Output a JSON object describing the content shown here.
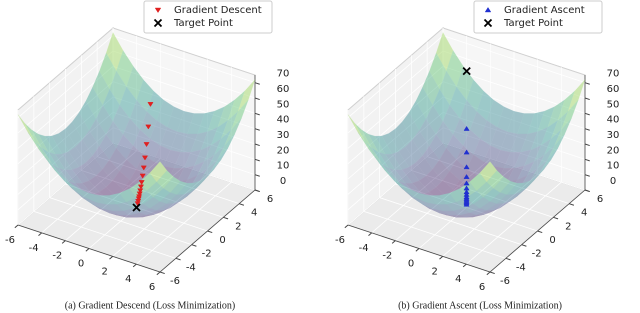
{
  "chart_data": [
    {
      "type": "scatter3d",
      "title": "(a) Gradient Descend (Loss Minimization)",
      "xlim": [
        -6,
        6
      ],
      "ylim": [
        -6,
        6
      ],
      "zlim": [
        0,
        75
      ],
      "xticks": [
        -6,
        -4,
        -2,
        0,
        2,
        4,
        6
      ],
      "yticks": [
        -6,
        -4,
        -2,
        0,
        2,
        4,
        6
      ],
      "zticks": [
        0,
        10,
        20,
        30,
        40,
        50,
        60,
        70
      ],
      "grid": true,
      "legend": "upper right",
      "series": [
        {
          "name": "Gradient Descent",
          "color": "#e02020",
          "marker": "v",
          "x": [
            -2.5,
            -2.13,
            -1.8,
            -1.53,
            -1.3,
            -1.1,
            -0.93,
            -0.8,
            -0.68,
            -0.58,
            -0.48,
            -0.4,
            -0.3,
            -0.2
          ],
          "y": [
            5.5,
            4.68,
            3.96,
            3.36,
            2.86,
            2.42,
            2.04,
            1.76,
            1.49,
            1.27,
            1.05,
            0.88,
            0.66,
            0.44
          ],
          "z": [
            36.5,
            26.4,
            19.0,
            13.6,
            9.9,
            7.1,
            5.0,
            3.7,
            2.7,
            1.9,
            1.3,
            0.9,
            0.5,
            0.2
          ]
        },
        {
          "name": "Target Point",
          "color": "#000000",
          "marker": "x",
          "x": [
            0
          ],
          "y": [
            0
          ],
          "z": [
            0
          ]
        }
      ]
    },
    {
      "type": "scatter3d",
      "title": "(b) Gradient Ascent (Loss Minimization)",
      "xlim": [
        -6,
        6
      ],
      "ylim": [
        -6,
        6
      ],
      "zlim": [
        0,
        75
      ],
      "xticks": [
        -6,
        -4,
        -2,
        0,
        2,
        4,
        6
      ],
      "yticks": [
        -6,
        -4,
        -2,
        0,
        2,
        4,
        6
      ],
      "zticks": [
        0,
        10,
        20,
        30,
        40,
        50,
        60,
        70
      ],
      "grid": true,
      "legend": "upper right",
      "series": [
        {
          "name": "Gradient Ascent",
          "color": "#2030d0",
          "marker": "^",
          "x": [
            -0.2,
            -0.28,
            -0.36,
            -0.44,
            -0.52,
            -0.6,
            -0.72,
            -0.84,
            -1.0,
            -1.2,
            -1.44,
            -1.76,
            -2.2,
            -2.8
          ],
          "y": [
            0.3,
            0.42,
            0.54,
            0.66,
            0.78,
            0.9,
            1.08,
            1.26,
            1.5,
            1.8,
            2.16,
            2.64,
            3.3,
            4.2
          ],
          "z": [
            0.1,
            0.3,
            0.4,
            0.6,
            0.9,
            1.2,
            1.7,
            2.3,
            3.3,
            4.7,
            6.7,
            10.1,
            15.7,
            25.5
          ]
        },
        {
          "name": "Target Point",
          "color": "#000000",
          "marker": "x",
          "x": [
            -4
          ],
          "y": [
            6
          ],
          "z": [
            52
          ]
        }
      ]
    }
  ]
}
